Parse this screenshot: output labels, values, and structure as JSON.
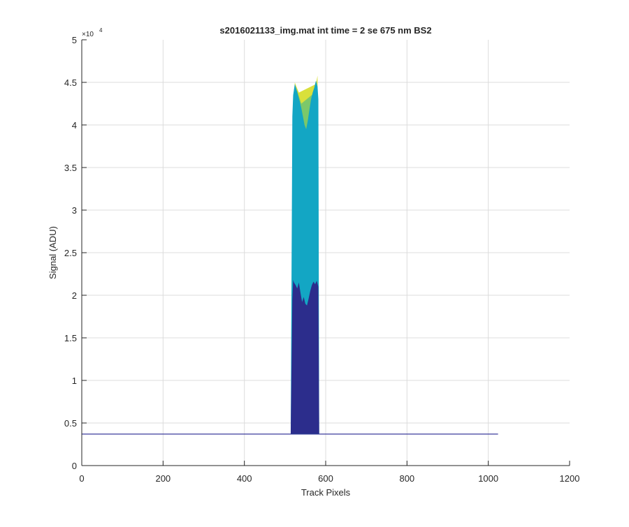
{
  "chart_data": {
    "type": "area",
    "title": "s2016021133_img.mat int time = 2 se  675 nm BS2",
    "xlabel": "Track Pixels",
    "ylabel": "Signal (ADU)",
    "y_exponent_label": "×10",
    "y_exponent_power": "4",
    "xlim": [
      0,
      1200
    ],
    "ylim": [
      0,
      50000
    ],
    "x_ticks": [
      0,
      200,
      400,
      600,
      800,
      1000,
      1200
    ],
    "x_tick_labels": [
      "0",
      "200",
      "400",
      "600",
      "800",
      "1000",
      "1200"
    ],
    "y_ticks": [
      0,
      5000,
      10000,
      15000,
      20000,
      25000,
      30000,
      35000,
      40000,
      45000,
      50000
    ],
    "y_tick_labels": [
      "0",
      "0.5",
      "1",
      "1.5",
      "2",
      "2.5",
      "3",
      "3.5",
      "4",
      "4.5",
      "5"
    ],
    "grid": true,
    "baseline": {
      "x_start": 0,
      "x_end": 1024,
      "value": 3700
    },
    "peak_region": {
      "x_start": 516,
      "x_end": 583
    },
    "layers": [
      {
        "color": "#2c2d8c",
        "x": [
          514,
          518,
          520,
          522,
          526,
          530,
          534,
          538,
          542,
          546,
          550,
          554,
          558,
          562,
          566,
          570,
          574,
          578,
          582,
          584
        ],
        "values": [
          3900,
          19500,
          21800,
          21500,
          21200,
          20800,
          21500,
          20300,
          19200,
          19800,
          19000,
          18800,
          19600,
          20500,
          21200,
          21600,
          21300,
          21700,
          21000,
          4000
        ]
      },
      {
        "color": "#13a6c4",
        "x": [
          514,
          518,
          520,
          524,
          528,
          532,
          536,
          540,
          544,
          548,
          552,
          556,
          560,
          564,
          568,
          572,
          576,
          580,
          582,
          584
        ],
        "values": [
          4000,
          41000,
          43500,
          44800,
          44200,
          43500,
          42800,
          42000,
          41000,
          40000,
          39500,
          40500,
          41800,
          43000,
          43800,
          44400,
          45200,
          44500,
          43000,
          4000
        ]
      }
    ],
    "peak_tips": [
      {
        "color": "#d9e03b",
        "x": [
          524,
          528,
          534,
          576,
          580
        ],
        "values": [
          45000,
          44500,
          43800,
          44800,
          45800
        ]
      },
      {
        "color": "#7cc86a",
        "x": [
          522,
          530,
          540,
          568,
          578
        ],
        "values": [
          44200,
          44000,
          42500,
          43600,
          45000
        ]
      }
    ],
    "colors": {
      "baseline": "#3b3b9c",
      "axis": "#262626",
      "grid": "#dcdcdc"
    }
  }
}
